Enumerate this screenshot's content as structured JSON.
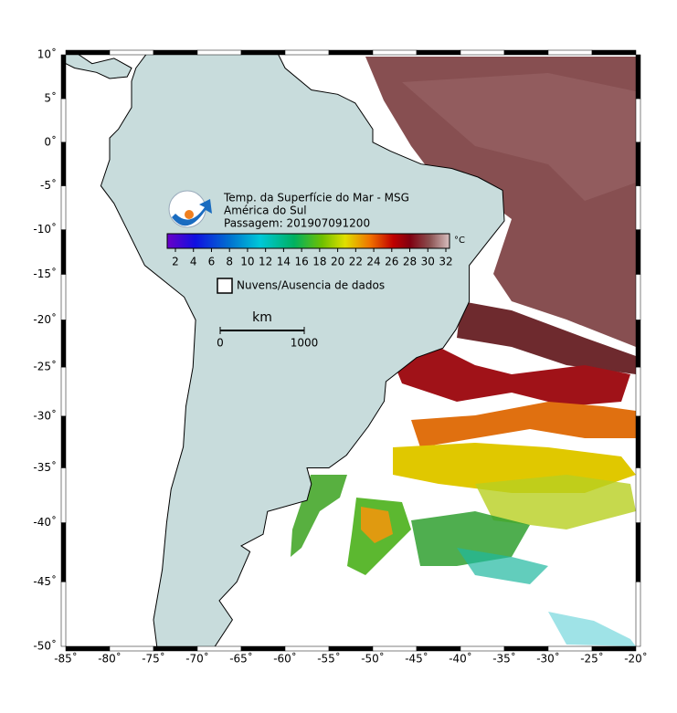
{
  "map": {
    "title_lines": [
      "Temp. da Superfície do Mar - MSG",
      "América do Sul",
      "Passagem: 201907091200"
    ],
    "colorbar": {
      "ticks": [
        2,
        4,
        6,
        8,
        10,
        12,
        14,
        16,
        18,
        20,
        22,
        24,
        26,
        28,
        30,
        32
      ],
      "unit": "°C"
    },
    "legend": "Nuvens/Ausencia de dados",
    "scale": {
      "unit": "km",
      "ticks": [
        0,
        1000
      ]
    },
    "lat_ticks": [
      {
        "value": 10,
        "label": "10˚"
      },
      {
        "value": 5,
        "label": "5˚"
      },
      {
        "value": 0,
        "label": "0˚"
      },
      {
        "value": -5,
        "label": "-5˚"
      },
      {
        "value": -10,
        "label": "-10˚"
      },
      {
        "value": -15,
        "label": "-15˚"
      },
      {
        "value": -20,
        "label": "-20˚"
      },
      {
        "value": -25,
        "label": "-25˚"
      },
      {
        "value": -30,
        "label": "-30˚"
      },
      {
        "value": -35,
        "label": "-35˚"
      },
      {
        "value": -40,
        "label": "-40˚"
      },
      {
        "value": -45,
        "label": "-45˚"
      },
      {
        "value": -50,
        "label": "-50˚"
      }
    ],
    "lon_ticks": [
      {
        "value": -85,
        "label": "-85˚"
      },
      {
        "value": -80,
        "label": "-80˚"
      },
      {
        "value": -75,
        "label": "-75˚"
      },
      {
        "value": -70,
        "label": "-70˚"
      },
      {
        "value": -65,
        "label": "-65˚"
      },
      {
        "value": -60,
        "label": "-60˚"
      },
      {
        "value": -55,
        "label": "-55˚"
      },
      {
        "value": -50,
        "label": "-50˚"
      },
      {
        "value": -45,
        "label": "-45˚"
      },
      {
        "value": -40,
        "label": "-40˚"
      },
      {
        "value": -35,
        "label": "-35˚"
      },
      {
        "value": -30,
        "label": "-30˚"
      },
      {
        "value": -25,
        "label": "-25˚"
      },
      {
        "value": -20,
        "label": "-20˚"
      }
    ]
  }
}
